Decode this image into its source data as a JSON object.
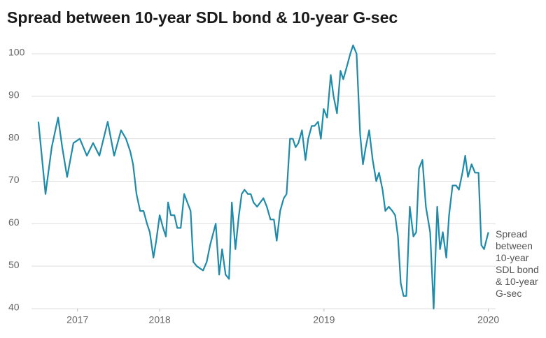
{
  "chart_data": {
    "type": "line",
    "title": "Spread between 10-year SDL bond & 10-year G-sec",
    "x": [
      2017.262,
      2017.305,
      2017.343,
      2017.382,
      2017.407,
      2017.437,
      2017.475,
      2017.514,
      2017.557,
      2017.595,
      2017.633,
      2017.684,
      2017.723,
      2017.765,
      2017.795,
      2017.821,
      2017.838,
      2017.859,
      2017.881,
      2017.902,
      2017.923,
      2017.94,
      2017.962,
      2017.979,
      2018.0,
      2018.021,
      2018.038,
      2018.051,
      2018.068,
      2018.09,
      2018.107,
      2018.128,
      2018.149,
      2018.188,
      2018.205,
      2018.226,
      2018.264,
      2018.286,
      2018.307,
      2018.341,
      2018.362,
      2018.38,
      2018.401,
      2018.422,
      2018.439,
      2018.461,
      2018.482,
      2018.499,
      2018.516,
      2018.537,
      2018.554,
      2018.571,
      2018.593,
      2018.631,
      2018.652,
      2018.674,
      2018.695,
      2018.712,
      2018.733,
      2018.755,
      2018.772,
      2018.793,
      2018.81,
      2018.827,
      2018.844,
      2018.866,
      2018.887,
      2018.904,
      2018.925,
      2018.942,
      2018.964,
      2018.981,
      2018.998,
      2019.019,
      2019.041,
      2019.058,
      2019.079,
      2019.1,
      2019.117,
      2019.139,
      2019.16,
      2019.177,
      2019.198,
      2019.22,
      2019.237,
      2019.254,
      2019.275,
      2019.296,
      2019.318,
      2019.335,
      2019.356,
      2019.373,
      2019.394,
      2019.416,
      2019.433,
      2019.45,
      2019.467,
      2019.484,
      2019.501,
      2019.522,
      2019.544,
      2019.561,
      2019.578,
      2019.599,
      2019.62,
      2019.646,
      2019.667,
      2019.689,
      2019.706,
      2019.723,
      2019.744,
      2019.761,
      2019.782,
      2019.804,
      2019.821,
      2019.842,
      2019.859,
      2019.876,
      2019.898,
      2019.919,
      2019.94,
      2019.957,
      2019.974,
      2020.0
    ],
    "series": [
      {
        "name": "Spread between 10-year SDL bond & 10-year G-sec",
        "color": "#1f8ba8",
        "values": [
          84,
          67,
          78,
          85,
          78,
          71,
          79,
          80,
          76,
          79,
          76,
          84,
          76,
          82,
          80,
          77,
          74,
          67,
          63,
          63,
          60,
          58,
          52,
          56,
          62,
          59,
          57,
          65,
          62,
          62,
          59,
          59,
          67,
          63,
          51,
          50,
          49,
          51,
          55,
          60,
          48,
          54,
          48,
          47,
          65,
          54,
          62,
          67,
          68,
          67,
          67,
          65,
          64,
          66,
          64,
          61,
          61,
          56,
          63,
          66,
          67,
          80,
          80,
          78,
          79,
          82,
          75,
          80,
          83,
          83,
          84,
          80,
          87,
          85,
          95,
          90,
          86,
          96,
          94,
          97,
          100,
          102,
          100,
          81,
          74,
          78,
          82,
          75,
          70,
          72,
          68,
          63,
          64,
          63,
          62,
          57,
          46,
          43,
          43,
          64,
          57,
          58,
          73,
          75,
          64,
          58,
          40,
          64,
          54,
          58,
          52,
          62,
          69,
          69,
          68,
          72,
          76,
          71,
          74,
          72,
          72,
          55,
          54,
          58
        ]
      }
    ],
    "xlim": [
      2017.22,
      2020.01
    ],
    "xticks": [
      {
        "value": 2017.5,
        "label": "2017"
      },
      2018,
      2019,
      2020
    ],
    "ylim": [
      40,
      100
    ],
    "yticks": [
      40,
      50,
      60,
      70,
      80,
      90,
      100
    ],
    "grid": true
  }
}
